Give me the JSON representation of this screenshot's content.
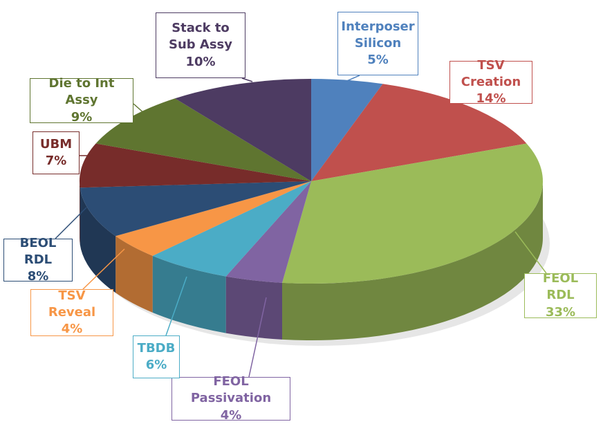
{
  "chart_data": {
    "type": "pie3d",
    "categories": [
      "Interposer Silicon",
      "TSV Creation",
      "FEOL RDL",
      "FEOL Passivation",
      "TBDB",
      "TSV Reveal",
      "BEOL RDL",
      "UBM",
      "Die to Int Assy",
      "Stack to Sub Assy"
    ],
    "values": [
      5,
      14,
      33,
      4,
      6,
      4,
      8,
      7,
      9,
      10
    ],
    "value_labels": [
      "5%",
      "14%",
      "33%",
      "4%",
      "6%",
      "4%",
      "8%",
      "7%",
      "9%",
      "10%"
    ],
    "colors": [
      "#4f81bd",
      "#c0504d",
      "#9bbb59",
      "#8064a2",
      "#4bacc6",
      "#f79646",
      "#2c4d75",
      "#772c2a",
      "#5f7530",
      "#4d3b62"
    ]
  }
}
